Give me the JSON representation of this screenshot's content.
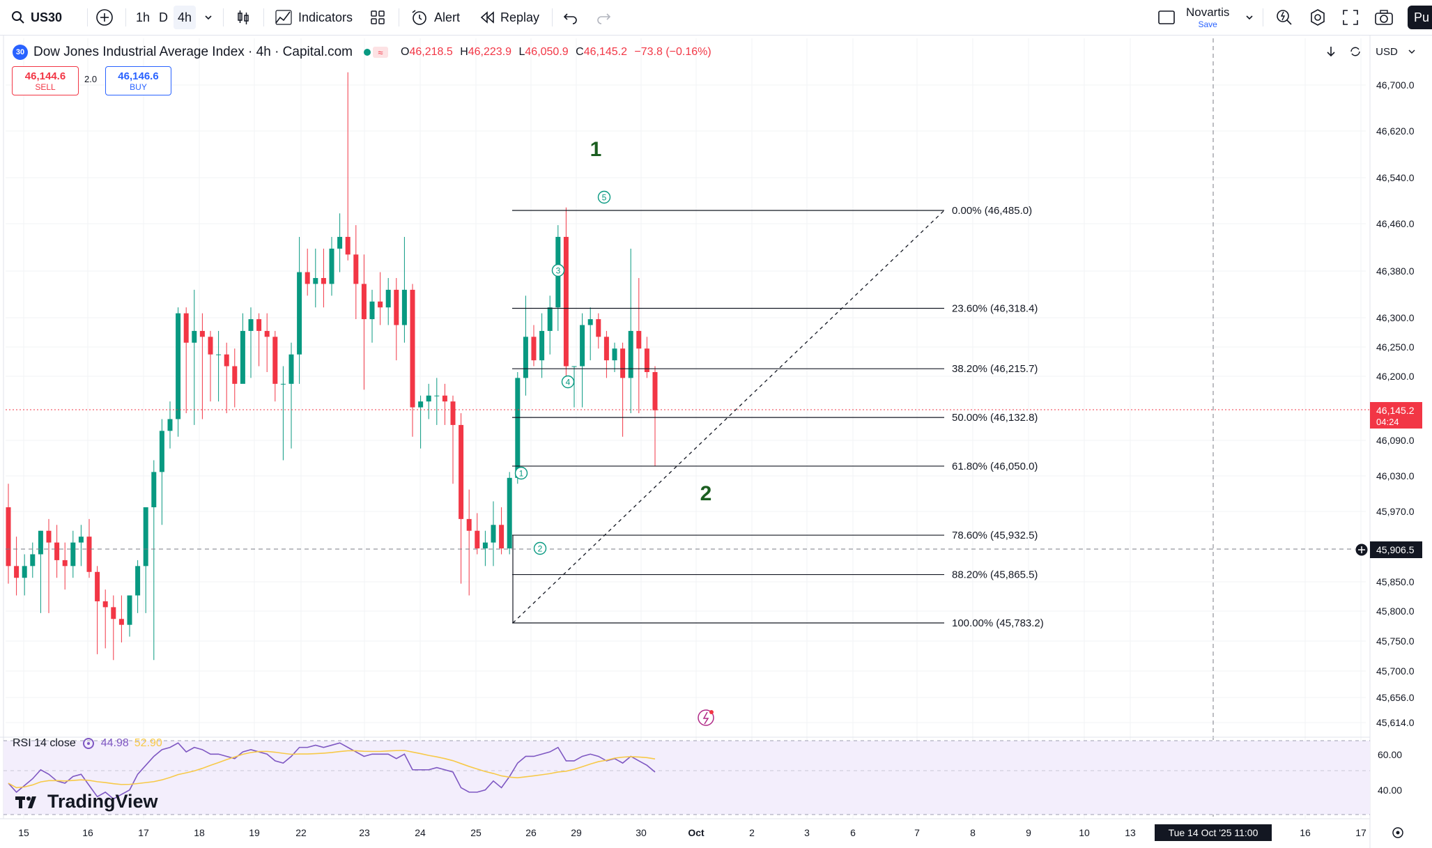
{
  "toolbar": {
    "symbol": "US30",
    "intervals": [
      "1h",
      "D",
      "4h"
    ],
    "active_interval": "4h",
    "indicators_label": "Indicators",
    "alert_label": "Alert",
    "replay_label": "Replay",
    "layout_name": "Novartis",
    "layout_save": "Save",
    "publish_label": "Pu"
  },
  "legend": {
    "symbol_badge": "30",
    "title": "Dow Jones Industrial Average Index · 4h · Capital.com",
    "o_key": "O",
    "o_val": "46,218.5",
    "h_key": "H",
    "h_val": "46,223.9",
    "l_key": "L",
    "l_val": "46,050.9",
    "c_key": "C",
    "c_val": "46,145.2",
    "change": "−73.8 (−0.16%)"
  },
  "trade": {
    "sell_price": "46,144.6",
    "sell_label": "SELL",
    "spread": "2.0",
    "buy_price": "46,146.6",
    "buy_label": "BUY"
  },
  "axis": {
    "currency": "USD",
    "price_labels": [
      "46,700.0",
      "46,620.0",
      "46,540.0",
      "46,460.0",
      "46,380.0",
      "46,300.0",
      "46,250.0",
      "46,200.0",
      "46,090.0",
      "46,030.0",
      "45,970.0",
      "45,850.0",
      "45,800.0",
      "45,750.0",
      "45,700.0",
      "45,656.0",
      "45,614.0"
    ],
    "last_price": "46,145.2",
    "countdown": "04:24",
    "crosshair_price": "45,906.5",
    "rsi_labels": [
      "60.00",
      "40.00"
    ]
  },
  "time_axis": {
    "labels": [
      "15",
      "16",
      "17",
      "18",
      "19",
      "22",
      "23",
      "24",
      "25",
      "26",
      "29",
      "30",
      "Oct",
      "2",
      "3",
      "6",
      "7",
      "8",
      "9",
      "10",
      "13",
      "16",
      "17"
    ],
    "crosshair_time": "Tue 14 Oct '25   11:00"
  },
  "fib": {
    "levels": [
      {
        "label": "0.00% (46,485.0)",
        "price": 46485.0
      },
      {
        "label": "23.60% (46,318.4)",
        "price": 46318.4
      },
      {
        "label": "38.20% (46,215.7)",
        "price": 46215.7
      },
      {
        "label": "50.00% (46,132.8)",
        "price": 46132.8
      },
      {
        "label": "61.80% (46,050.0)",
        "price": 46050.0
      },
      {
        "label": "78.60% (45,932.5)",
        "price": 45932.5
      },
      {
        "label": "88.20% (45,865.5)",
        "price": 45865.5
      },
      {
        "label": "100.00% (45,783.2)",
        "price": 45783.2
      }
    ]
  },
  "waves": {
    "big_1": "1",
    "big_2": "2",
    "small": [
      "1",
      "2",
      "3",
      "4",
      "5"
    ]
  },
  "rsi": {
    "label": "RSI 14 close",
    "value": "44.98",
    "ma_value": "52.90"
  },
  "branding": "TradingView",
  "colors": {
    "up": "#089981",
    "down": "#f23645",
    "fib_line": "#131722",
    "wave": "#1b5e20",
    "rsi_line": "#7e57c2",
    "rsi_ma": "#f7c948"
  }
}
